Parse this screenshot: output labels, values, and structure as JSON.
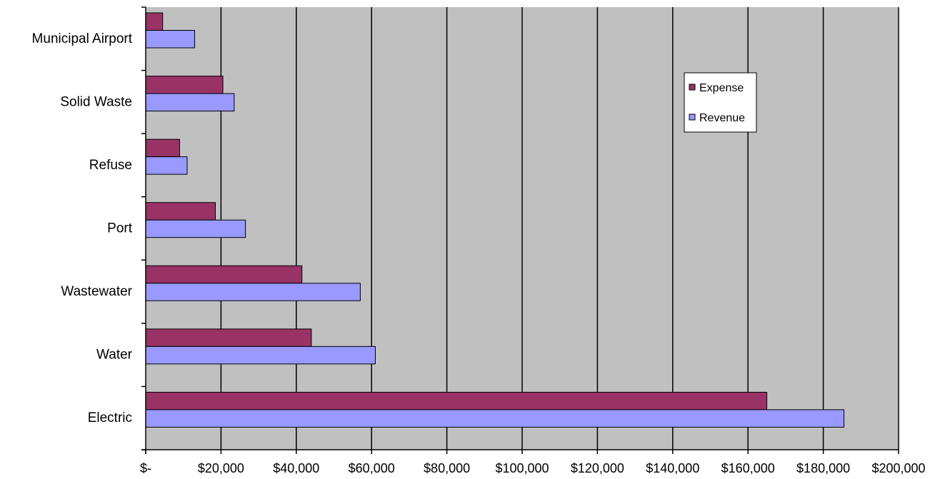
{
  "chart_data": {
    "type": "bar",
    "orientation": "horizontal",
    "categories": [
      "Municipal Airport",
      "Solid Waste",
      "Refuse",
      "Port",
      "Wastewater",
      "Water",
      "Electric"
    ],
    "series": [
      {
        "name": "Expense",
        "color": "#993366",
        "values": [
          4500,
          20500,
          9000,
          18500,
          41500,
          44000,
          165000
        ]
      },
      {
        "name": "Revenue",
        "color": "#9999ff",
        "values": [
          13000,
          23500,
          11000,
          26500,
          57000,
          61000,
          185500
        ]
      }
    ],
    "x_ticks": [
      "$-",
      "$20,000",
      "$40,000",
      "$60,000",
      "$80,000",
      "$100,000",
      "$120,000",
      "$140,000",
      "$160,000",
      "$180,000",
      "$200,000"
    ],
    "xlim": [
      0,
      200000
    ],
    "plot_background": "#c0c0c0",
    "grid": "vertical",
    "legend_position": "top-right"
  }
}
